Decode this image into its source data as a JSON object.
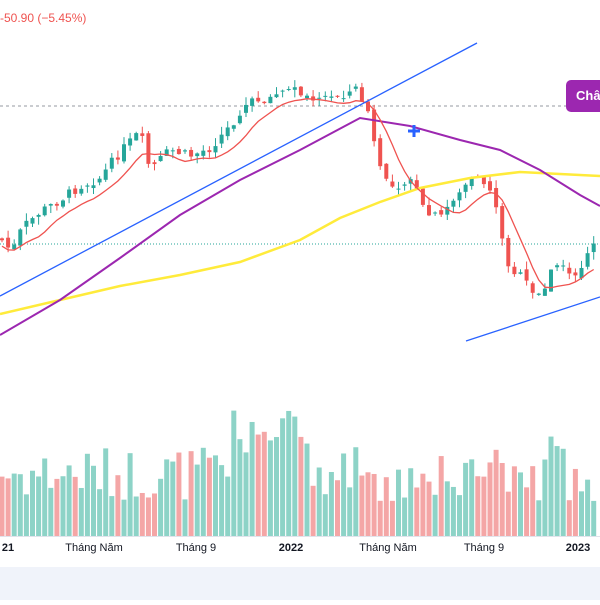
{
  "header": {
    "change_text": "-50.90 (−5.45%)"
  },
  "badge": {
    "label": "Châ"
  },
  "colors": {
    "up": "#26a69a",
    "down": "#ef5350",
    "vol_up": "#8dd3c7",
    "vol_down": "#f4a6a6",
    "ma_fast": "#ef5350",
    "ma_mid": "#9c27b0",
    "ma_slow": "#ffeb3b",
    "trendline": "#2962ff",
    "marker": "#2962ff",
    "badge": "#9c27b0"
  },
  "x_axis": {
    "ticks": [
      {
        "label": "21",
        "bold": true
      },
      {
        "label": "Tháng Năm",
        "bold": false
      },
      {
        "label": "Tháng 9",
        "bold": false
      },
      {
        "label": "2022",
        "bold": true
      },
      {
        "label": "Tháng Năm",
        "bold": false
      },
      {
        "label": "Tháng 9",
        "bold": false
      },
      {
        "label": "2023",
        "bold": true
      }
    ]
  },
  "chart_data": {
    "type": "candlestick",
    "title": "",
    "change": "-50.90 (−5.45%)",
    "price_label": "Châ",
    "grid": false,
    "legend": "none",
    "indicators": [
      "moving average (red)",
      "moving average (purple)",
      "moving average (yellow)"
    ],
    "trendlines": 2,
    "x_ticks": [
      "21",
      "Tháng Năm",
      "Tháng 9",
      "2022",
      "Tháng Năm",
      "Tháng 9",
      "2023"
    ]
  }
}
